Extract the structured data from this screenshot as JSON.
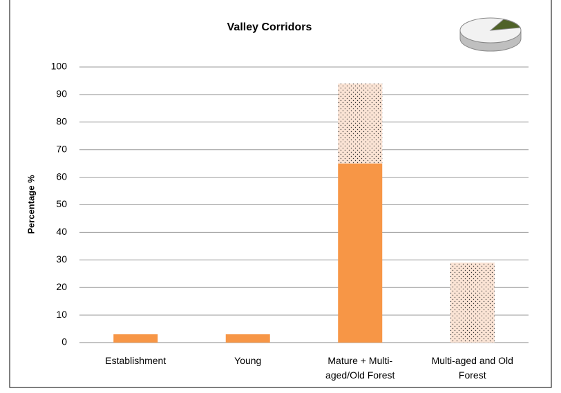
{
  "chart_data": {
    "type": "stacked_bar",
    "title": "Valley Corridors",
    "y_label": "Percentage %",
    "categories": [
      "Establishment",
      "Young",
      "Mature + Multi-aged/Old Forest",
      "Multi-aged and Old Forest"
    ],
    "series": [
      {
        "color": "#f79646",
        "values": [
          3,
          3,
          65,
          null
        ]
      },
      {
        "color": "#fbe4d5",
        "pattern": "dots",
        "values": [
          null,
          null,
          29,
          29
        ]
      }
    ],
    "ylim": [
      0,
      100
    ],
    "yticks": [
      0,
      10,
      20,
      30,
      40,
      50,
      60,
      70,
      80,
      90,
      100
    ],
    "grid": true
  }
}
